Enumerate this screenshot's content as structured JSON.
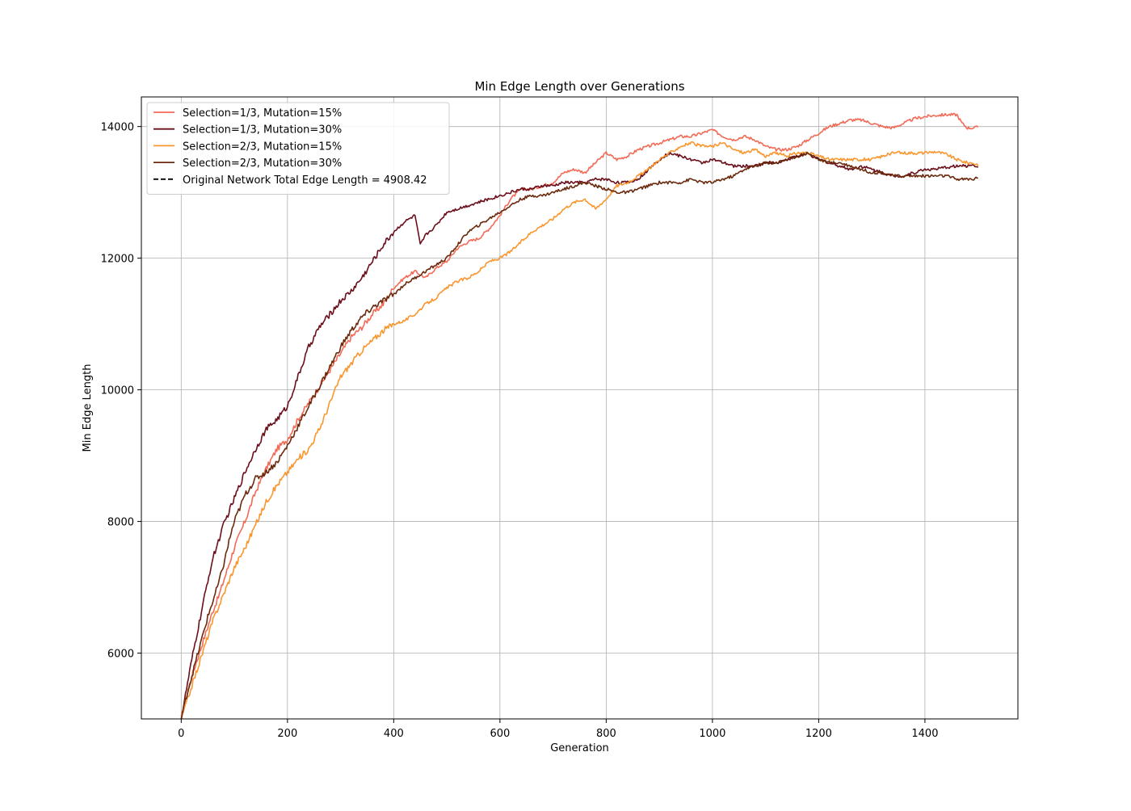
{
  "chart_data": {
    "type": "line",
    "title": "Min Edge Length over Generations",
    "xlabel": "Generation",
    "ylabel": "Min Edge Length",
    "xlim": [
      -75,
      1575
    ],
    "ylim": [
      5000,
      14450
    ],
    "xticks": [
      0,
      200,
      400,
      600,
      800,
      1000,
      1200,
      1400
    ],
    "yticks": [
      6000,
      8000,
      10000,
      12000,
      14000
    ],
    "grid": true,
    "legend_position": "upper-left",
    "series": [
      {
        "name": "Selection=1/3, Mutation=15%",
        "color": "#f26b56",
        "style": "solid",
        "x": [
          0,
          10,
          20,
          30,
          40,
          50,
          60,
          70,
          80,
          90,
          100,
          120,
          140,
          160,
          180,
          200,
          220,
          240,
          260,
          280,
          300,
          320,
          340,
          360,
          380,
          400,
          420,
          440,
          460,
          480,
          500,
          520,
          540,
          560,
          580,
          600,
          620,
          640,
          660,
          680,
          700,
          720,
          740,
          760,
          780,
          800,
          820,
          840,
          860,
          880,
          900,
          920,
          940,
          960,
          980,
          1000,
          1020,
          1040,
          1060,
          1080,
          1100,
          1120,
          1140,
          1160,
          1180,
          1200,
          1220,
          1240,
          1260,
          1280,
          1300,
          1320,
          1340,
          1360,
          1380,
          1400,
          1420,
          1440,
          1460,
          1470,
          1480,
          1490,
          1500
        ],
        "y": [
          5000,
          5350,
          5650,
          5900,
          6150,
          6400,
          6650,
          6850,
          7100,
          7350,
          7600,
          8000,
          8450,
          8800,
          9100,
          9250,
          9550,
          9800,
          10050,
          10300,
          10550,
          10800,
          10950,
          11150,
          11300,
          11550,
          11700,
          11800,
          11700,
          11850,
          11950,
          12150,
          12250,
          12300,
          12450,
          12650,
          12900,
          13050,
          13050,
          13100,
          13150,
          13300,
          13350,
          13300,
          13450,
          13600,
          13500,
          13550,
          13650,
          13700,
          13750,
          13800,
          13850,
          13850,
          13900,
          13950,
          13850,
          13800,
          13850,
          13800,
          13700,
          13650,
          13650,
          13700,
          13800,
          13900,
          14000,
          14050,
          14100,
          14100,
          14050,
          14000,
          13980,
          14050,
          14120,
          14150,
          14170,
          14180,
          14180,
          14050,
          13980,
          13980,
          13990
        ]
      },
      {
        "name": "Selection=1/3, Mutation=30%",
        "color": "#6b0f1a",
        "style": "solid",
        "x": [
          0,
          10,
          20,
          30,
          40,
          50,
          60,
          70,
          80,
          90,
          100,
          120,
          140,
          160,
          180,
          200,
          220,
          240,
          260,
          280,
          300,
          320,
          340,
          360,
          380,
          400,
          420,
          440,
          450,
          460,
          480,
          500,
          520,
          540,
          560,
          580,
          600,
          620,
          640,
          660,
          680,
          700,
          720,
          740,
          760,
          780,
          800,
          820,
          840,
          860,
          880,
          900,
          920,
          940,
          960,
          980,
          1000,
          1020,
          1040,
          1060,
          1080,
          1100,
          1120,
          1140,
          1160,
          1180,
          1200,
          1220,
          1240,
          1260,
          1280,
          1300,
          1320,
          1340,
          1360,
          1380,
          1400,
          1420,
          1440,
          1460,
          1480,
          1490,
          1500
        ],
        "y": [
          5000,
          5450,
          5900,
          6300,
          6700,
          7100,
          7450,
          7700,
          7950,
          8150,
          8350,
          8750,
          9100,
          9400,
          9550,
          9750,
          10200,
          10650,
          10950,
          11150,
          11350,
          11500,
          11700,
          11950,
          12200,
          12400,
          12550,
          12650,
          12200,
          12350,
          12500,
          12700,
          12750,
          12800,
          12850,
          12900,
          12950,
          13000,
          13050,
          13050,
          13100,
          13100,
          13150,
          13150,
          13150,
          13200,
          13200,
          13150,
          13150,
          13200,
          13350,
          13500,
          13600,
          13550,
          13500,
          13450,
          13500,
          13450,
          13400,
          13400,
          13400,
          13450,
          13450,
          13500,
          13550,
          13580,
          13500,
          13450,
          13400,
          13350,
          13400,
          13350,
          13300,
          13250,
          13250,
          13300,
          13350,
          13350,
          13380,
          13400,
          13400,
          13430,
          13380
        ]
      },
      {
        "name": "Selection=2/3, Mutation=15%",
        "color": "#f9962e",
        "style": "solid",
        "x": [
          0,
          10,
          20,
          30,
          40,
          50,
          60,
          70,
          80,
          90,
          100,
          120,
          140,
          160,
          180,
          200,
          220,
          240,
          260,
          280,
          300,
          320,
          340,
          360,
          380,
          400,
          420,
          440,
          460,
          480,
          500,
          520,
          540,
          560,
          580,
          600,
          620,
          640,
          660,
          680,
          700,
          720,
          740,
          760,
          780,
          800,
          820,
          840,
          860,
          880,
          900,
          920,
          940,
          960,
          980,
          1000,
          1020,
          1040,
          1060,
          1080,
          1100,
          1120,
          1140,
          1160,
          1180,
          1200,
          1220,
          1240,
          1260,
          1280,
          1300,
          1320,
          1340,
          1360,
          1380,
          1400,
          1420,
          1440,
          1460,
          1480,
          1490,
          1500
        ],
        "y": [
          5000,
          5250,
          5500,
          5750,
          6000,
          6250,
          6500,
          6700,
          6900,
          7100,
          7300,
          7600,
          7950,
          8300,
          8550,
          8750,
          8950,
          9100,
          9400,
          9800,
          10200,
          10400,
          10600,
          10750,
          10900,
          11000,
          11050,
          11150,
          11300,
          11400,
          11550,
          11650,
          11700,
          11800,
          11950,
          12000,
          12100,
          12250,
          12400,
          12500,
          12600,
          12750,
          12850,
          12900,
          12750,
          12900,
          13100,
          13150,
          13250,
          13350,
          13500,
          13600,
          13700,
          13750,
          13700,
          13700,
          13750,
          13650,
          13600,
          13650,
          13550,
          13600,
          13550,
          13600,
          13600,
          13550,
          13500,
          13500,
          13500,
          13500,
          13500,
          13550,
          13600,
          13600,
          13600,
          13600,
          13620,
          13580,
          13500,
          13450,
          13450,
          13400
        ]
      },
      {
        "name": "Selection=2/3, Mutation=30%",
        "color": "#6b2a0e",
        "style": "solid",
        "x": [
          0,
          10,
          20,
          30,
          40,
          50,
          60,
          70,
          80,
          90,
          100,
          120,
          140,
          160,
          180,
          200,
          220,
          240,
          260,
          280,
          300,
          320,
          340,
          360,
          380,
          400,
          420,
          440,
          460,
          480,
          500,
          520,
          540,
          560,
          580,
          600,
          620,
          640,
          660,
          680,
          700,
          720,
          740,
          760,
          780,
          800,
          820,
          840,
          860,
          880,
          900,
          920,
          940,
          960,
          980,
          1000,
          1020,
          1040,
          1060,
          1080,
          1100,
          1120,
          1140,
          1160,
          1180,
          1200,
          1220,
          1240,
          1260,
          1280,
          1300,
          1320,
          1340,
          1360,
          1380,
          1400,
          1420,
          1440,
          1460,
          1480,
          1490,
          1500
        ],
        "y": [
          5000,
          5350,
          5650,
          5950,
          6250,
          6550,
          6800,
          7050,
          7350,
          7700,
          8000,
          8400,
          8650,
          8750,
          8900,
          9150,
          9450,
          9750,
          10050,
          10350,
          10650,
          10900,
          11100,
          11250,
          11350,
          11450,
          11600,
          11700,
          11800,
          11900,
          12000,
          12200,
          12400,
          12500,
          12600,
          12700,
          12800,
          12900,
          12950,
          12950,
          13000,
          13050,
          13100,
          13150,
          13100,
          13050,
          13000,
          13000,
          13050,
          13100,
          13150,
          13150,
          13150,
          13200,
          13150,
          13150,
          13200,
          13250,
          13350,
          13400,
          13450,
          13450,
          13500,
          13550,
          13600,
          13500,
          13450,
          13450,
          13400,
          13350,
          13300,
          13300,
          13250,
          13250,
          13250,
          13250,
          13250,
          13250,
          13200,
          13200,
          13200,
          13220
        ]
      }
    ],
    "legend_entries": [
      {
        "label": "Selection=1/3, Mutation=15%",
        "color": "#f26b56",
        "style": "solid"
      },
      {
        "label": "Selection=1/3, Mutation=30%",
        "color": "#6b0f1a",
        "style": "solid"
      },
      {
        "label": "Selection=2/3, Mutation=15%",
        "color": "#f9962e",
        "style": "solid"
      },
      {
        "label": "Selection=2/3, Mutation=30%",
        "color": "#6b2a0e",
        "style": "solid"
      },
      {
        "label": "Original Network Total Edge Length = 4908.42",
        "color": "#000000",
        "style": "dashed"
      }
    ],
    "reference_line": {
      "label": "Original Network Total Edge Length = 4908.42",
      "y": 4908.42,
      "color": "#000000",
      "style": "dashed"
    }
  }
}
